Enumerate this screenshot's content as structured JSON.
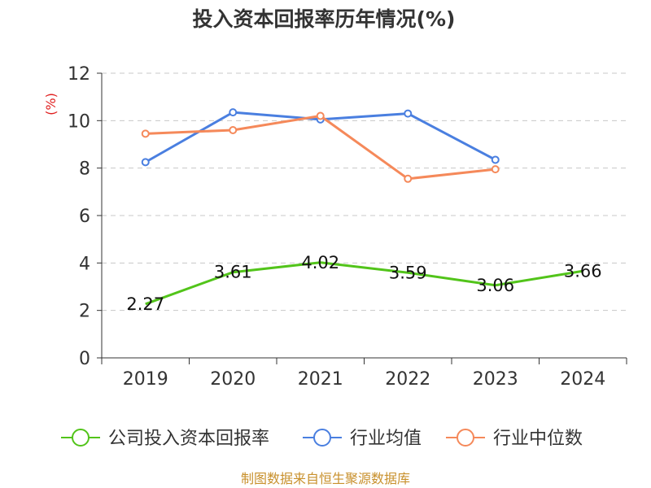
{
  "chart_data": {
    "type": "line",
    "title": "投入资本回报率历年情况(%)",
    "ylabel": "(%)",
    "xlabel": "",
    "categories": [
      "2019",
      "2020",
      "2021",
      "2022",
      "2023",
      "2024"
    ],
    "ylim": [
      0,
      12
    ],
    "yticks": [
      0,
      2,
      4,
      6,
      8,
      10,
      12
    ],
    "grid": true,
    "legend_position": "bottom",
    "series": [
      {
        "name": "公司投入资本回报率",
        "color": "#52c41a",
        "values": [
          2.27,
          3.61,
          4.02,
          3.59,
          3.06,
          3.66
        ],
        "labels": [
          "2.27",
          "3.61",
          "4.02",
          "3.59",
          "3.06",
          "3.66"
        ]
      },
      {
        "name": "行业均值",
        "color": "#4a7fe0",
        "values": [
          8.25,
          10.35,
          10.05,
          10.3,
          8.35,
          null
        ]
      },
      {
        "name": "行业中位数",
        "color": "#f5895a",
        "values": [
          9.45,
          9.6,
          10.2,
          7.55,
          7.95,
          null
        ]
      }
    ]
  },
  "source": "制图数据来自恒生聚源数据库"
}
